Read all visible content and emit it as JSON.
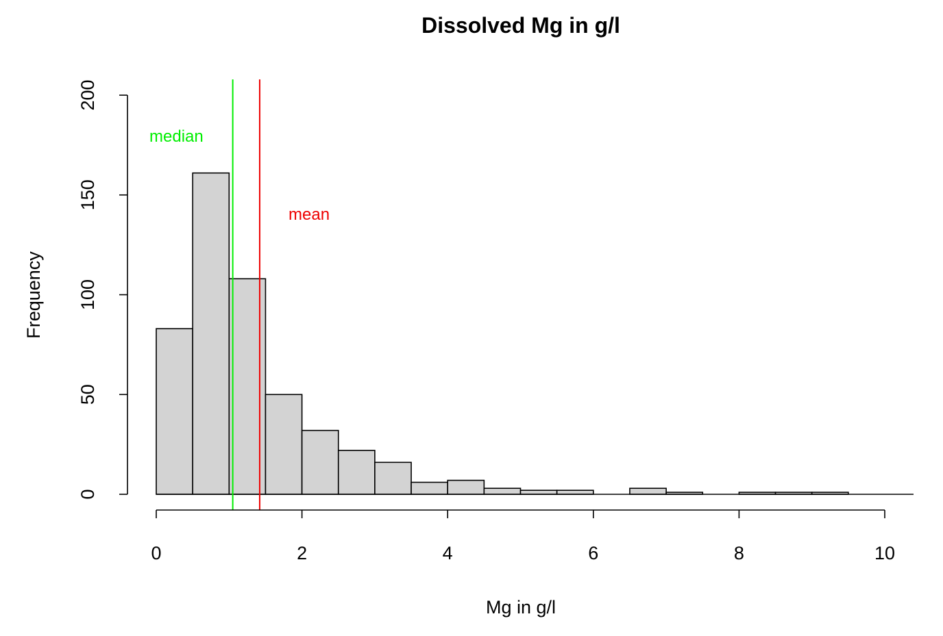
{
  "chart_data": {
    "type": "bar",
    "title": "Dissolved Mg in g/l",
    "xlabel": "Mg in g/l",
    "ylabel": "Frequency",
    "bin_width": 0.5,
    "bin_starts": [
      0,
      0.5,
      1.0,
      1.5,
      2.0,
      2.5,
      3.0,
      3.5,
      4.0,
      4.5,
      5.0,
      5.5,
      6.0,
      6.5,
      7.0,
      7.5,
      8.0,
      8.5,
      9.0,
      9.5
    ],
    "values": [
      83,
      161,
      108,
      50,
      32,
      22,
      16,
      6,
      7,
      3,
      2,
      2,
      0,
      3,
      1,
      0,
      1,
      1,
      1,
      0
    ],
    "xlim": [
      0,
      10
    ],
    "ylim": [
      0,
      200
    ],
    "xticks": [
      0,
      2,
      4,
      6,
      8,
      10
    ],
    "xtick_labels": [
      "0",
      "2",
      "4",
      "6",
      "8",
      "10"
    ],
    "yticks": [
      0,
      50,
      100,
      150,
      200
    ],
    "ytick_labels": [
      "0",
      "50",
      "100",
      "150",
      "200"
    ],
    "bar_color": "#d3d3d3",
    "vlines": [
      {
        "name": "median",
        "label": "median",
        "x": 1.05,
        "color": "#00ee00"
      },
      {
        "name": "mean",
        "label": "mean",
        "x": 1.42,
        "color": "#ee0000"
      }
    ]
  }
}
